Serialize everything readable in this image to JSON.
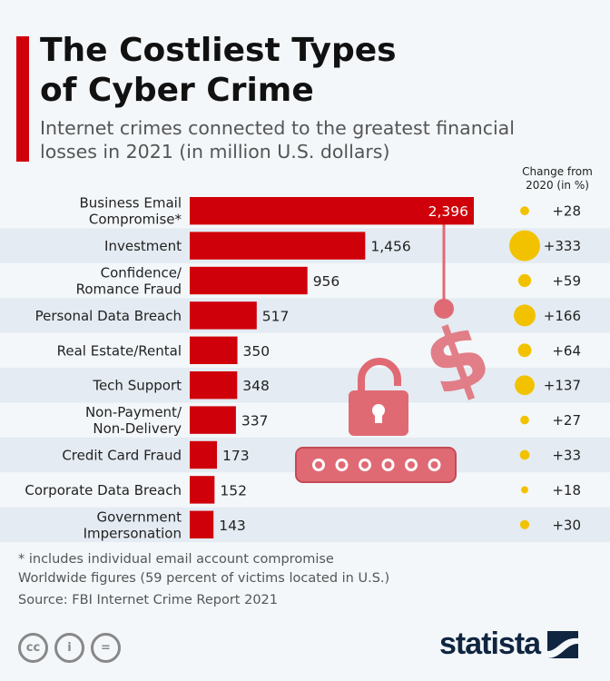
{
  "title_line1": "The Costliest Types",
  "title_line2": "of Cyber Crime",
  "subtitle_line1": "Internet crimes connected to the greatest financial",
  "subtitle_line2": "losses in 2021 (in million U.S. dollars)",
  "change_header_line1": "Change from",
  "change_header_line2": "2020 (in %)",
  "chart_data": {
    "type": "bar",
    "orientation": "horizontal",
    "title": "The Costliest Types of Cyber Crime",
    "categories": [
      [
        "Business Email",
        "Compromise*"
      ],
      [
        "Investment"
      ],
      [
        "Confidence/",
        "Romance Fraud"
      ],
      [
        "Personal Data Breach"
      ],
      [
        "Real Estate/Rental"
      ],
      [
        "Tech Support"
      ],
      [
        "Non-Payment/",
        "Non-Delivery"
      ],
      [
        "Credit Card Fraud"
      ],
      [
        "Corporate Data Breach"
      ],
      [
        "Government",
        "Impersonation"
      ]
    ],
    "values": [
      2396,
      1456,
      956,
      517,
      350,
      348,
      337,
      173,
      152,
      143
    ],
    "value_labels": [
      "2,396",
      "1,456",
      "956",
      "517",
      "350",
      "348",
      "337",
      "173",
      "152",
      "143"
    ],
    "change_pct": [
      28,
      333,
      59,
      166,
      64,
      137,
      27,
      33,
      18,
      30
    ],
    "change_labels": [
      "+28",
      "+333",
      "+59",
      "+166",
      "+64",
      "+137",
      "+27",
      "+33",
      "+18",
      "+30"
    ],
    "unit": "million U.S. dollars",
    "colors": {
      "bar": "#d0000a",
      "bubble": "#f2c200",
      "band": "#e4ebf2",
      "deco": "#e06a74"
    }
  },
  "footnote": "* includes individual email account compromise",
  "note": "Worldwide figures (59 percent of victims located in U.S.)",
  "source": "Source: FBI Internet Crime Report 2021",
  "license_icons": [
    "cc",
    "i",
    "="
  ],
  "brand": "statista"
}
